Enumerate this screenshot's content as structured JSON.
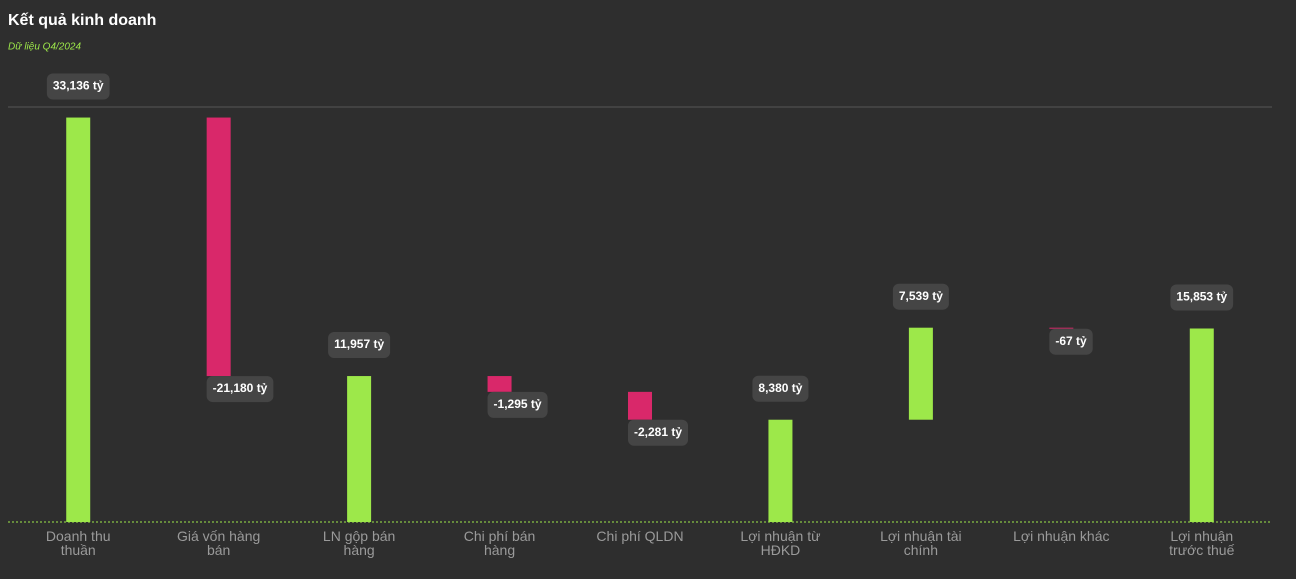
{
  "chart_data": {
    "type": "waterfall",
    "title": "Kết quả kinh doanh",
    "subtitle": "Dữ liệu Q4/2024",
    "categories": [
      "Doanh thu thuần",
      "Giá vốn hàng bán",
      "LN gộp bán hàng",
      "Chi phí bán hàng",
      "Chi phí QLDN",
      "Lợi nhuận từ HĐKD",
      "Lợi nhuận tài chính",
      "Lợi nhuận khác",
      "Lợi nhuận trước thuế"
    ],
    "values": [
      33136,
      -21180,
      11957,
      -1295,
      -2281,
      8380,
      7539,
      -67,
      15853
    ],
    "value_labels": [
      "33,136 tỷ",
      "-21,180 tỷ",
      "11,957 tỷ",
      "-1,295 tỷ",
      "-2,281 tỷ",
      "8,380 tỷ",
      "7,539 tỷ",
      "-67 tỷ",
      "15,853 tỷ"
    ],
    "measure": [
      "total",
      "relative",
      "total",
      "relative",
      "relative",
      "total",
      "relative",
      "relative",
      "total"
    ],
    "positive_color": "#9de84a",
    "negative_color": "#d9286a",
    "ylim": [
      0,
      34000
    ]
  }
}
